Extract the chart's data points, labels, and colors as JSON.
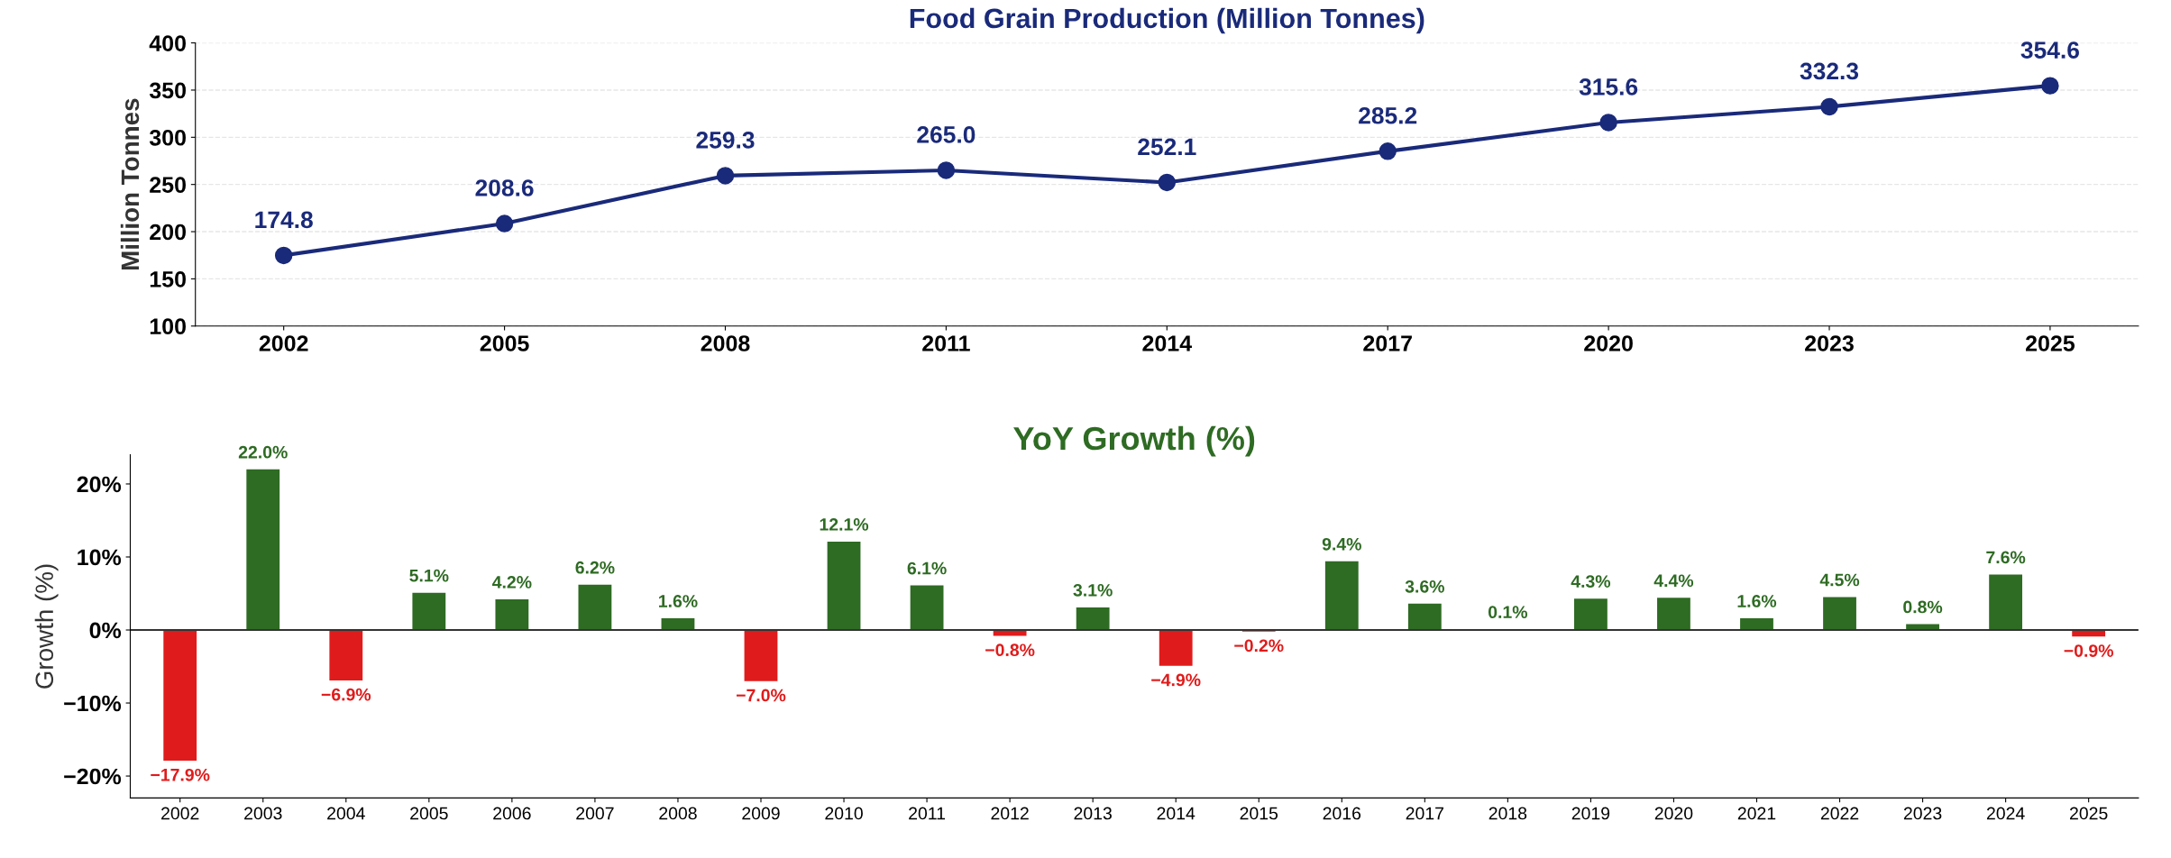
{
  "chart_data": [
    {
      "type": "line",
      "title": "Food Grain Production (Million Tonnes)",
      "ylabel": "Million Tonnes",
      "categories": [
        "2002",
        "2005",
        "2008",
        "2011",
        "2014",
        "2017",
        "2020",
        "2023",
        "2025"
      ],
      "series": [
        {
          "color": "#1a2a7a",
          "values": [
            174.8,
            208.6,
            259.3,
            265.0,
            252.1,
            285.2,
            315.6,
            332.3,
            354.6
          ],
          "value_labels": [
            "174.8",
            "208.6",
            "259.3",
            "265.0",
            "252.1",
            "285.2",
            "315.6",
            "332.3",
            "354.6"
          ]
        }
      ],
      "ylim": [
        100,
        400
      ],
      "yticks": [
        100,
        150,
        200,
        250,
        300,
        350,
        400
      ],
      "grid": "y",
      "marker": "circle",
      "line_style": "solid",
      "legend": false
    },
    {
      "type": "bar",
      "title": "YoY Growth (%)",
      "ylabel": "Growth (%)",
      "categories": [
        "2002",
        "2003",
        "2004",
        "2005",
        "2006",
        "2007",
        "2008",
        "2009",
        "2010",
        "2011",
        "2012",
        "2013",
        "2014",
        "2015",
        "2016",
        "2017",
        "2018",
        "2019",
        "2020",
        "2021",
        "2022",
        "2023",
        "2024",
        "2025"
      ],
      "values": [
        -17.9,
        22.0,
        -6.9,
        5.1,
        4.2,
        6.2,
        1.6,
        -7.0,
        12.1,
        6.1,
        -0.8,
        3.1,
        -4.9,
        -0.2,
        9.4,
        3.6,
        0.1,
        4.3,
        4.4,
        1.6,
        4.5,
        0.8,
        7.6,
        -0.9
      ],
      "colors": [
        "#e01b1b",
        "#2e6b23",
        "#e01b1b",
        "#2e6b23",
        "#2e6b23",
        "#2e6b23",
        "#2e6b23",
        "#e01b1b",
        "#2e6b23",
        "#2e6b23",
        "#e01b1b",
        "#2e6b23",
        "#e01b1b",
        "#e01b1b",
        "#2e6b23",
        "#2e6b23",
        "#2e6b23",
        "#2e6b23",
        "#2e6b23",
        "#2e6b23",
        "#2e6b23",
        "#2e6b23",
        "#2e6b23",
        "#e01b1b"
      ],
      "value_labels": [
        "−17.9%",
        "22.0%",
        "−6.9%",
        "5.1%",
        "4.2%",
        "6.2%",
        "1.6%",
        "−7.0%",
        "12.1%",
        "6.1%",
        "−0.8%",
        "3.1%",
        "−4.9%",
        "−0.2%",
        "9.4%",
        "3.6%",
        "0.1%",
        "4.3%",
        "4.4%",
        "1.6%",
        "4.5%",
        "0.8%",
        "7.6%",
        "−0.9%"
      ],
      "ylim": [
        -23,
        24
      ],
      "yticks": [
        {
          "value": -20,
          "label": "−20%"
        },
        {
          "value": -10,
          "label": "−10%"
        },
        {
          "value": 0,
          "label": "0%"
        },
        {
          "value": 10,
          "label": "10%"
        },
        {
          "value": 20,
          "label": "20%"
        }
      ],
      "ref_lines": [
        {
          "axis": "y",
          "value": 0,
          "color": "#333333"
        }
      ],
      "grid": false,
      "legend": false
    }
  ]
}
